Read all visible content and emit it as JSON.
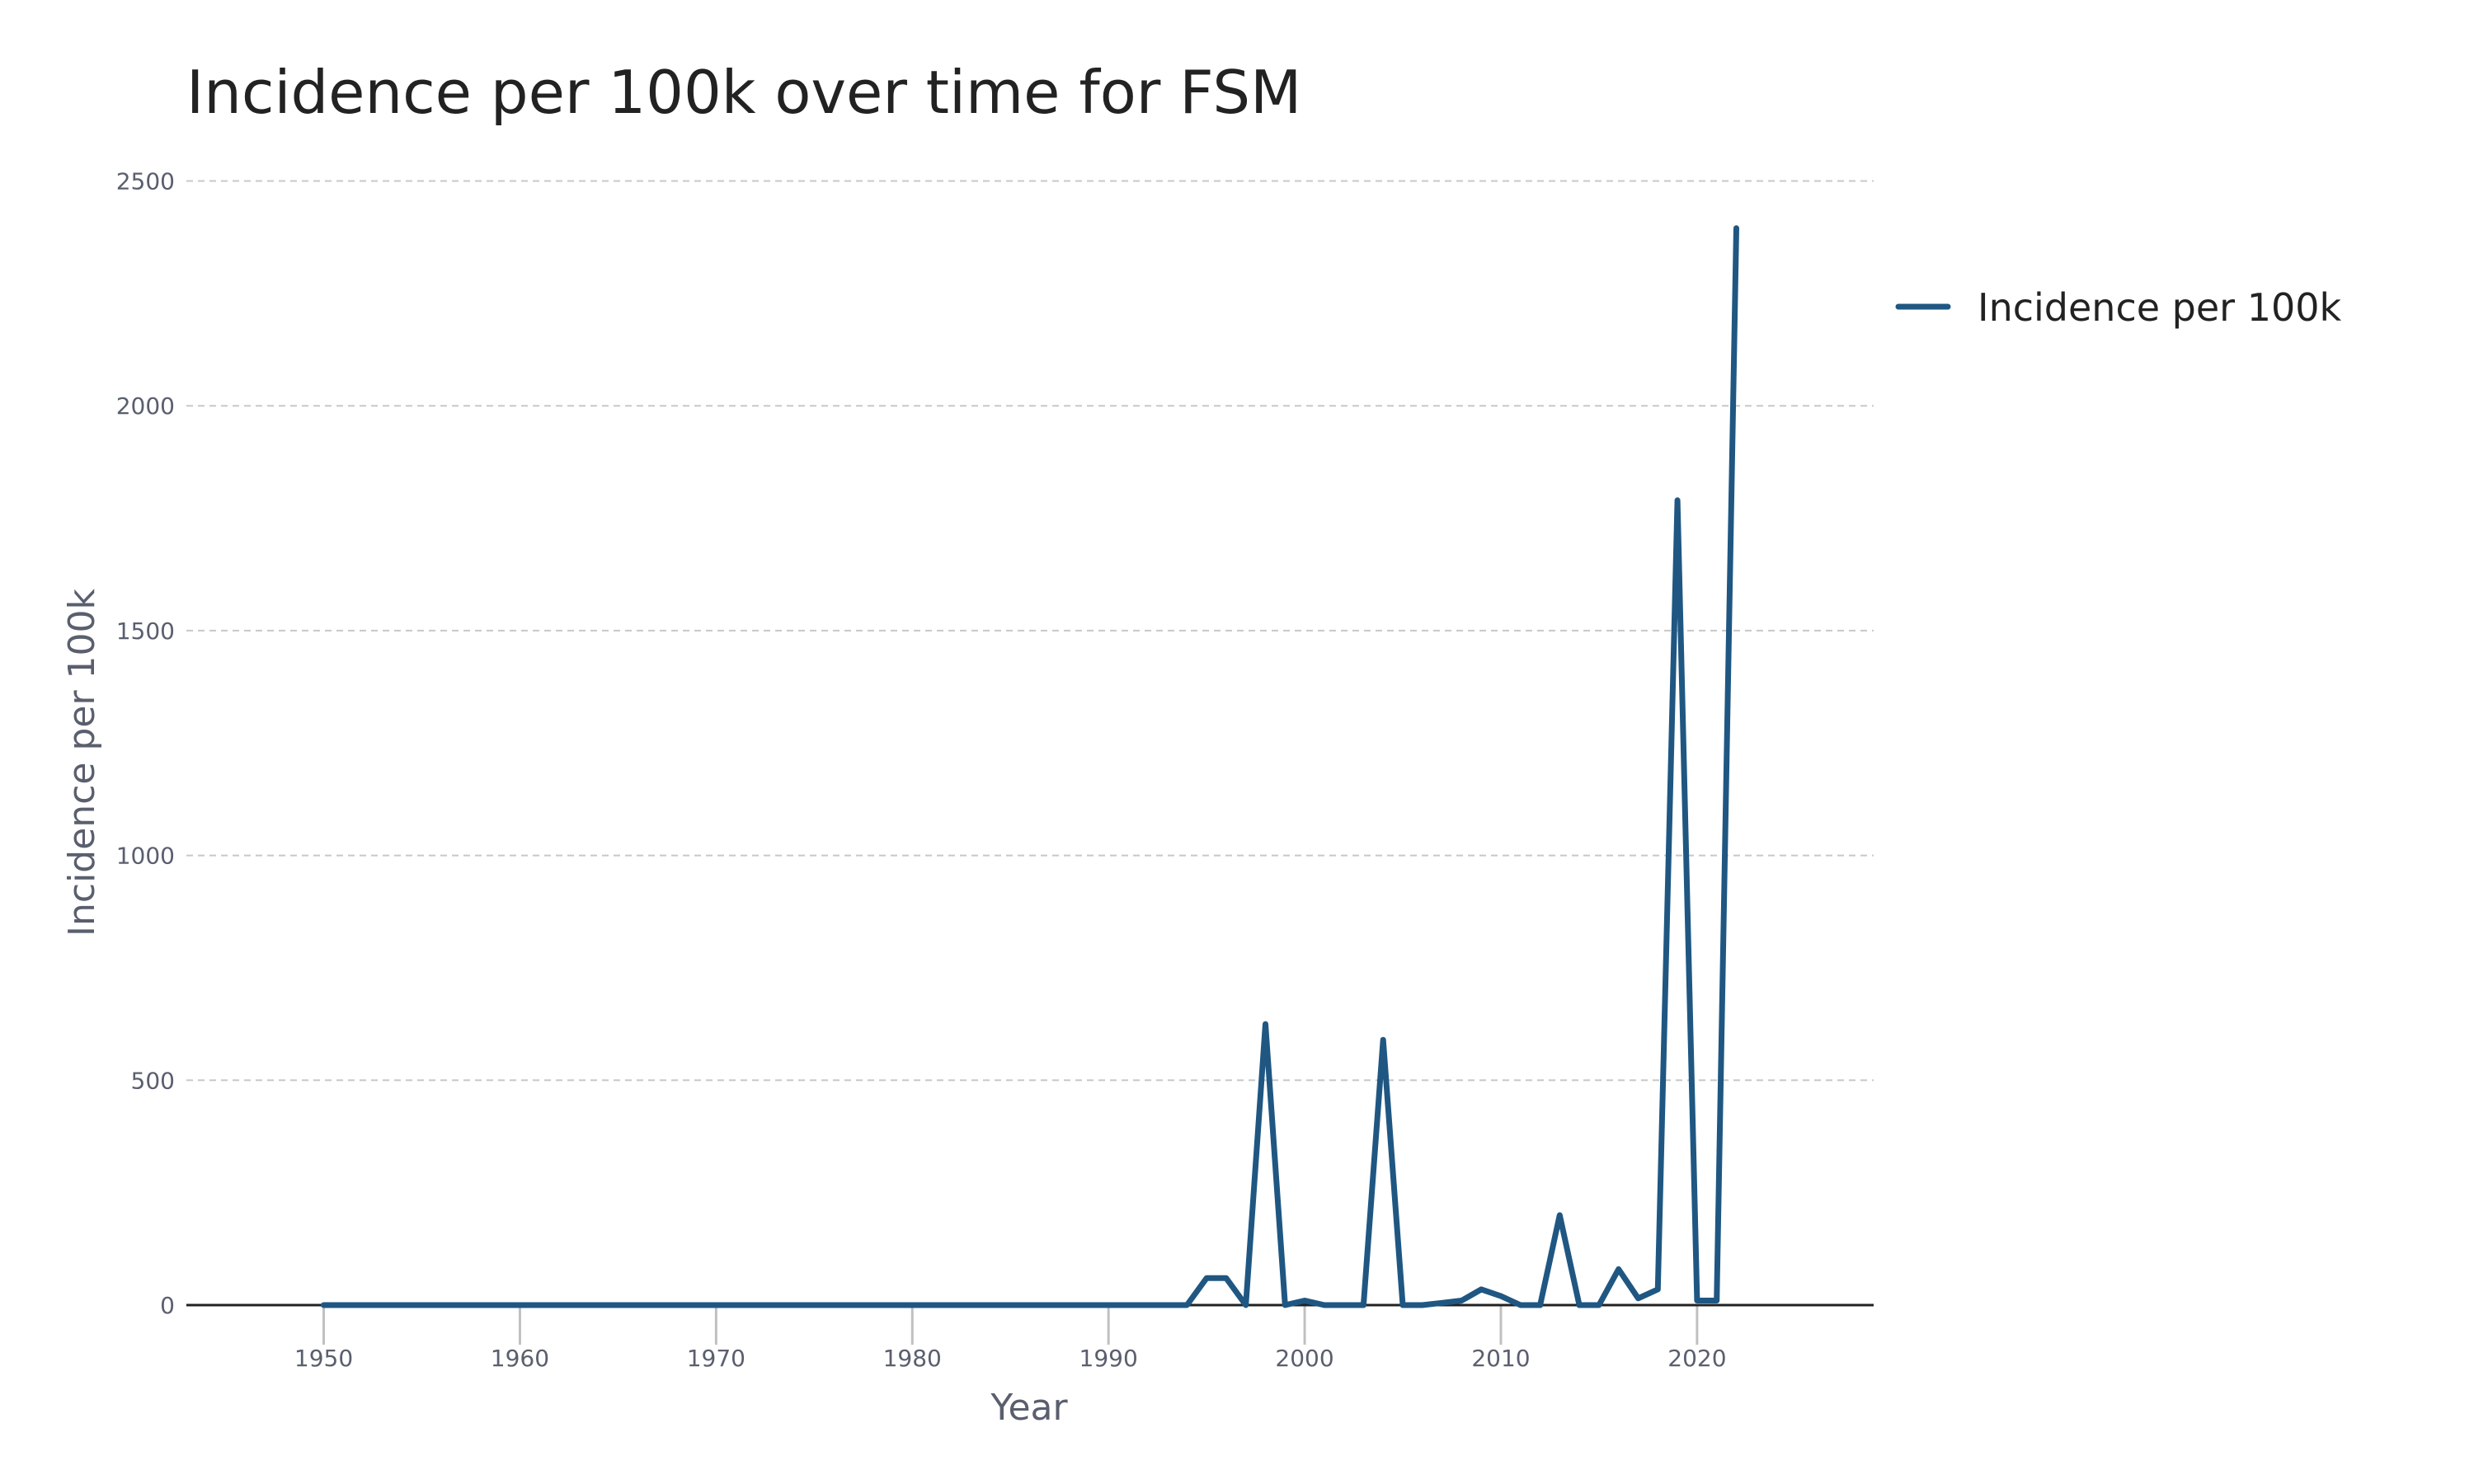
{
  "colors": {
    "series": "#1f5782",
    "axis": "#222222",
    "grid": "#c8c8c8",
    "tick_text": "#5a5f6e"
  },
  "chart_data": {
    "type": "line",
    "title": "Incidence per 100k over time for FSM",
    "xlabel": "Year",
    "ylabel": "Incidence per 100k",
    "xlim": [
      1943,
      2029
    ],
    "ylim": [
      0,
      2600
    ],
    "x_ticks": [
      1950,
      1960,
      1970,
      1980,
      1990,
      2000,
      2010,
      2020
    ],
    "y_ticks": [
      0,
      500,
      1000,
      1500,
      2000,
      2500
    ],
    "grid": "horizontal dashed",
    "legend_position": "top-right",
    "series": [
      {
        "name": "Incidence per 100k",
        "color": "#1f5782",
        "x": [
          1950,
          1951,
          1952,
          1953,
          1954,
          1955,
          1956,
          1957,
          1958,
          1959,
          1960,
          1961,
          1962,
          1963,
          1964,
          1965,
          1966,
          1967,
          1968,
          1969,
          1970,
          1971,
          1972,
          1973,
          1974,
          1975,
          1976,
          1977,
          1978,
          1979,
          1980,
          1981,
          1982,
          1983,
          1984,
          1985,
          1986,
          1987,
          1988,
          1989,
          1990,
          1991,
          1992,
          1993,
          1994,
          1995,
          1996,
          1997,
          1998,
          1999,
          2000,
          2001,
          2002,
          2003,
          2004,
          2005,
          2006,
          2007,
          2008,
          2009,
          2010,
          2011,
          2012,
          2013,
          2014,
          2015,
          2016,
          2017,
          2018,
          2019,
          2020,
          2021,
          2022
        ],
        "y": [
          0,
          0,
          0,
          0,
          0,
          0,
          0,
          0,
          0,
          0,
          0,
          0,
          0,
          0,
          0,
          0,
          0,
          0,
          0,
          0,
          0,
          0,
          0,
          0,
          0,
          0,
          0,
          0,
          0,
          0,
          0,
          0,
          0,
          0,
          0,
          0,
          0,
          0,
          0,
          0,
          0,
          0,
          0,
          0,
          0,
          60,
          60,
          0,
          625,
          0,
          10,
          0,
          0,
          0,
          590,
          0,
          0,
          5,
          10,
          35,
          20,
          0,
          0,
          200,
          0,
          0,
          80,
          15,
          35,
          1790,
          10,
          10,
          2395
        ]
      }
    ]
  }
}
